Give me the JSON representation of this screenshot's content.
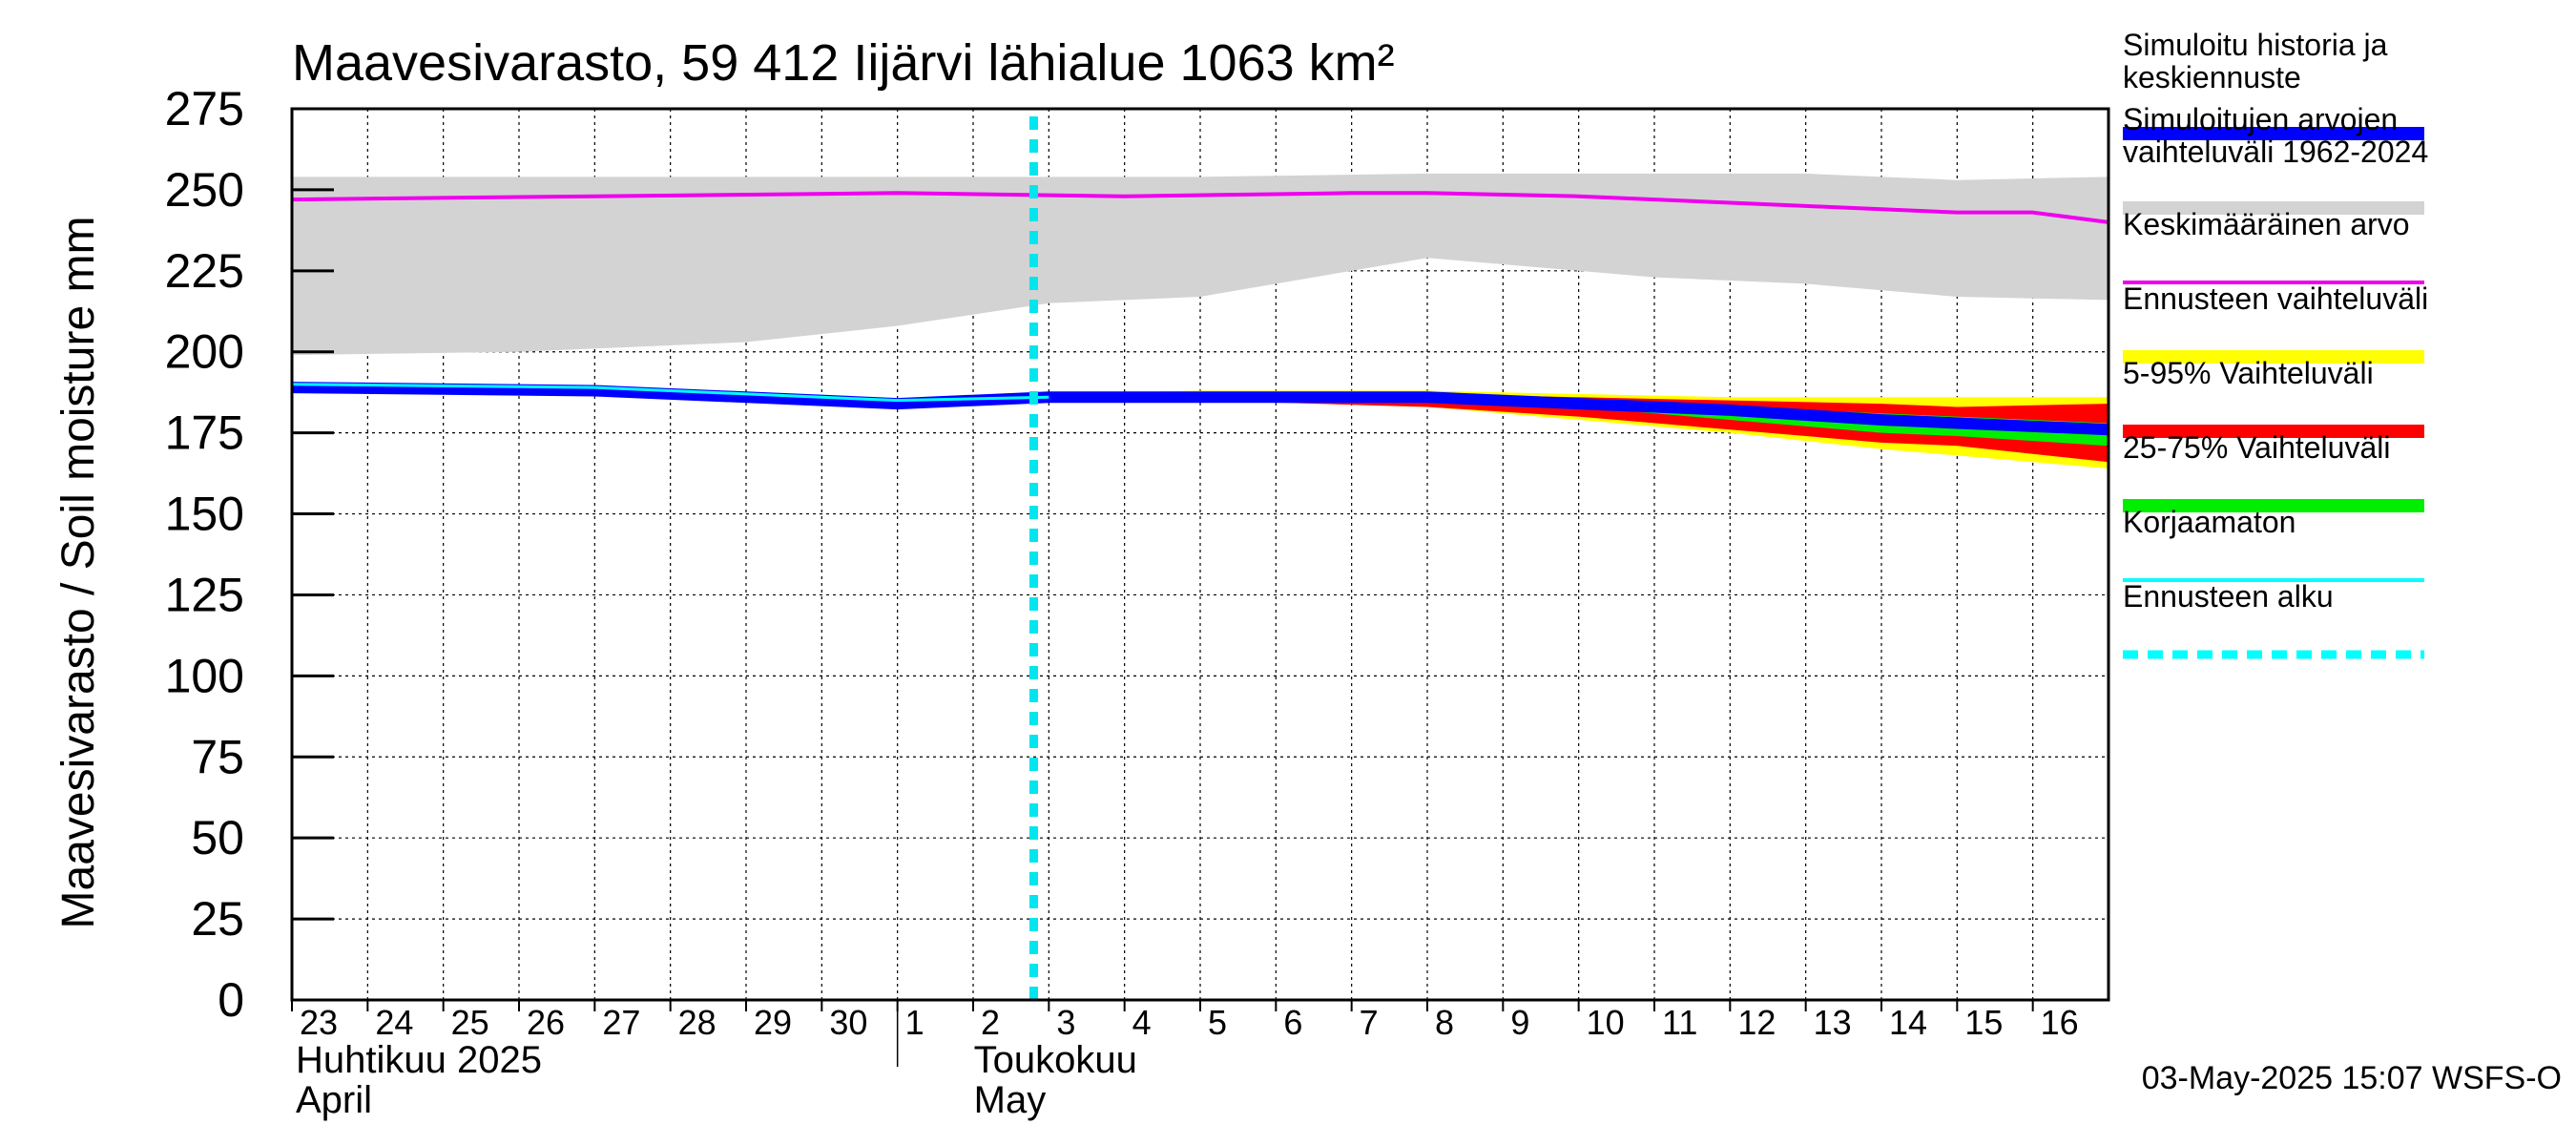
{
  "chart_data": {
    "type": "line",
    "title": "Maavesivarasto, 59 412 Iijärvi lähialue 1063 km²",
    "ylabel": "Maavesivarasto / Soil moisture   mm",
    "ylim": [
      0,
      275
    ],
    "yticks": [
      0,
      25,
      50,
      75,
      100,
      125,
      150,
      175,
      200,
      225,
      250,
      275
    ],
    "x_start": "2025-04-23",
    "x_end": "2025-05-16",
    "x_ticks": [
      "23",
      "24",
      "25",
      "26",
      "27",
      "28",
      "29",
      "30",
      "1",
      "2",
      "3",
      "4",
      "5",
      "6",
      "7",
      "8",
      "9",
      "10",
      "11",
      "12",
      "13",
      "14",
      "15",
      "16"
    ],
    "months": [
      {
        "fi": "Huhtikuu  2025",
        "en": "April"
      },
      {
        "fi": "Toukokuu",
        "en": "May"
      }
    ],
    "grid": true,
    "forecast_start": "2025-05-03",
    "series": [
      {
        "name": "Simuloitujen arvojen vaihteluväli 1962-2024",
        "kind": "band",
        "color": "#d3d3d3",
        "x": [
          "2025-04-23",
          "2025-04-26",
          "2025-04-29",
          "2025-05-01",
          "2025-05-03",
          "2025-05-05",
          "2025-05-08",
          "2025-05-11",
          "2025-05-13",
          "2025-05-15",
          "2025-05-17"
        ],
        "low": [
          199,
          200,
          203,
          208,
          215,
          217,
          229,
          223,
          221,
          217,
          216
        ],
        "high": [
          254,
          254,
          254,
          254,
          254,
          254,
          255,
          255,
          255,
          253,
          254
        ]
      },
      {
        "name": "Keskimääräinen arvo",
        "kind": "line",
        "color": "#ee00ee",
        "x": [
          "2025-04-23",
          "2025-04-27",
          "2025-05-01",
          "2025-05-04",
          "2025-05-07",
          "2025-05-08",
          "2025-05-10",
          "2025-05-13",
          "2025-05-15",
          "2025-05-16",
          "2025-05-17"
        ],
        "values": [
          247,
          248,
          249,
          248,
          249,
          249,
          248,
          245,
          243,
          243,
          240
        ]
      },
      {
        "name": "Ennusteen vaihteluväli",
        "kind": "band",
        "color": "#ffff00",
        "x": [
          "2025-05-03",
          "2025-05-05",
          "2025-05-08",
          "2025-05-10",
          "2025-05-12",
          "2025-05-14",
          "2025-05-15",
          "2025-05-17"
        ],
        "low": [
          185,
          185,
          183,
          179,
          175,
          170,
          168,
          164
        ],
        "high": [
          187,
          188,
          188,
          187,
          186,
          186,
          186,
          186
        ]
      },
      {
        "name": "5-95% Vaihteluväli",
        "kind": "band",
        "color": "#ff0000",
        "x": [
          "2025-05-03",
          "2025-05-05",
          "2025-05-08",
          "2025-05-10",
          "2025-05-12",
          "2025-05-14",
          "2025-05-15",
          "2025-05-17"
        ],
        "low": [
          185,
          185,
          183,
          180,
          176,
          172,
          171,
          166
        ],
        "high": [
          187,
          187,
          187,
          186,
          185,
          184,
          183,
          184
        ]
      },
      {
        "name": "25-75% Vaihteluväli",
        "kind": "band",
        "color": "#00ee00",
        "x": [
          "2025-05-03",
          "2025-05-05",
          "2025-05-08",
          "2025-05-10",
          "2025-05-12",
          "2025-05-14",
          "2025-05-15",
          "2025-05-17"
        ],
        "low": [
          185,
          186,
          185,
          183,
          179,
          175,
          174,
          171
        ],
        "high": [
          186,
          187,
          187,
          185,
          183,
          181,
          180,
          178
        ]
      },
      {
        "name": "Korjaamaton",
        "kind": "line",
        "color": "#00ffff",
        "x": [
          "2025-04-23",
          "2025-04-27",
          "2025-05-01",
          "2025-05-03"
        ],
        "values": [
          190,
          189,
          185,
          186
        ]
      },
      {
        "name": "Simuloitu historia ja keskiennuste",
        "kind": "line",
        "color": "#0000ff",
        "x": [
          "2025-04-23",
          "2025-04-27",
          "2025-05-01",
          "2025-05-03",
          "2025-05-05",
          "2025-05-08",
          "2025-05-10",
          "2025-05-12",
          "2025-05-14",
          "2025-05-15",
          "2025-05-17"
        ],
        "values": [
          189,
          188,
          184,
          186,
          186,
          186,
          184,
          182,
          179,
          178,
          176
        ]
      }
    ],
    "legend": {
      "placement": "right",
      "items": [
        {
          "label": "Simuloitu historia ja keskiennuste",
          "lines": [
            "Simuloitu historia ja",
            "keskiennuste"
          ],
          "color": "#0000ff",
          "style": "thick"
        },
        {
          "label": "Simuloitujen arvojen vaihteluväli 1962-2024",
          "lines": [
            "Simuloitujen arvojen",
            "vaihteluväli 1962-2024"
          ],
          "color": "#d3d3d3",
          "style": "thick"
        },
        {
          "label": "Keskimääräinen arvo",
          "lines": [
            "Keskimääräinen arvo"
          ],
          "color": "#ee00ee",
          "style": "thin"
        },
        {
          "label": "Ennusteen vaihteluväli",
          "lines": [
            "Ennusteen vaihteluväli"
          ],
          "color": "#ffff00",
          "style": "thick"
        },
        {
          "label": "5-95% Vaihteluväli",
          "lines": [
            "5-95% Vaihteluväli"
          ],
          "color": "#ff0000",
          "style": "thick"
        },
        {
          "label": "25-75% Vaihteluväli",
          "lines": [
            "25-75% Vaihteluväli"
          ],
          "color": "#00ee00",
          "style": "thick"
        },
        {
          "label": "Korjaamaton",
          "lines": [
            "Korjaamaton"
          ],
          "color": "#00ffff",
          "style": "thin"
        },
        {
          "label": "Ennusteen alku",
          "lines": [
            "Ennusteen alku"
          ],
          "color": "#00ffff",
          "style": "dashed"
        }
      ]
    },
    "footer": "03-May-2025 15:07 WSFS-O"
  }
}
